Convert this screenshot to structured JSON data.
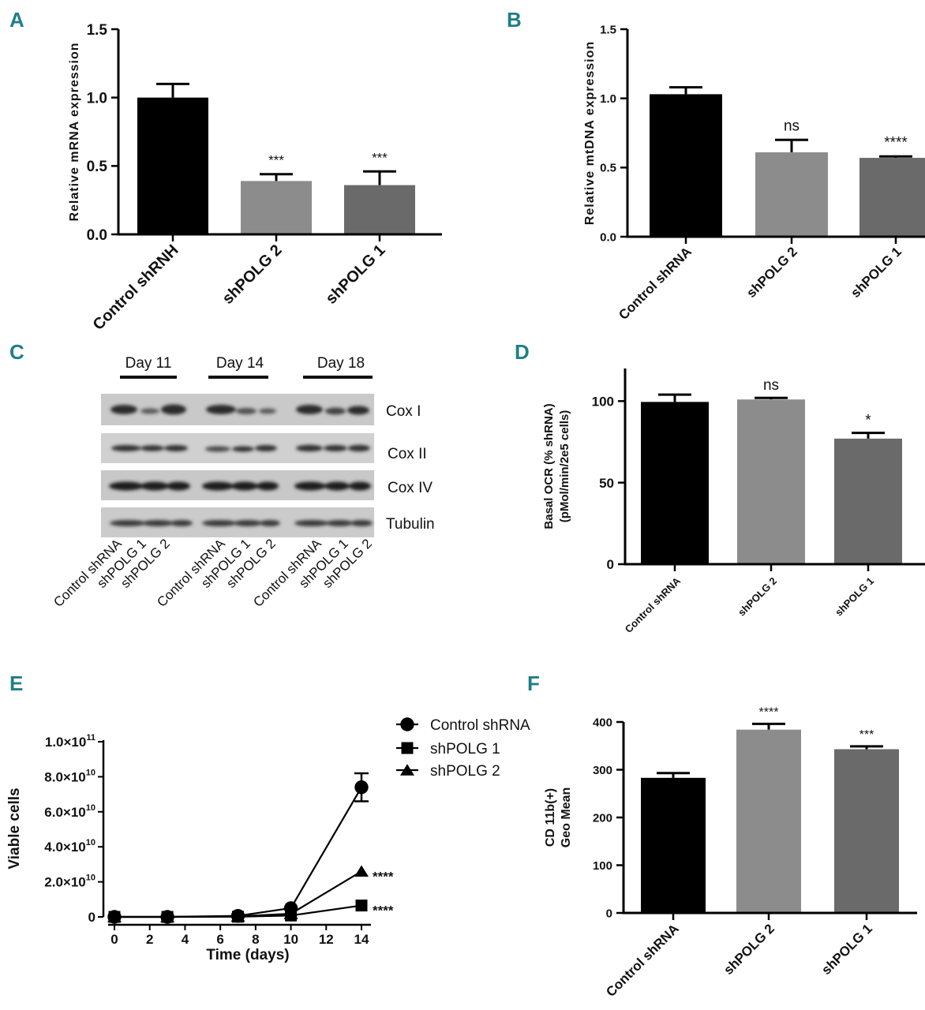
{
  "figure": {
    "panel_letter_color": "#1e7f86",
    "bar_colors": [
      "#000000",
      "#8c8c8c",
      "#6a6a6a"
    ]
  },
  "chart_data": [
    {
      "panel": "A",
      "type": "bar",
      "title": "",
      "ylabel": "Relative mRNA expression",
      "xlabel": "",
      "categories": [
        "Control shRNH",
        "shPOLG 2",
        "shPOLG 1"
      ],
      "values": [
        1.0,
        0.39,
        0.36
      ],
      "errors": [
        0.1,
        0.05,
        0.1
      ],
      "significance": [
        "",
        "***",
        "***"
      ],
      "ylim": [
        0,
        1.5
      ],
      "yticks": [
        "0.0",
        "0.5",
        "1.0",
        "1.5"
      ],
      "yticks_values": [
        0,
        0.5,
        1.0,
        1.5
      ]
    },
    {
      "panel": "B",
      "type": "bar",
      "title": "",
      "ylabel": "Relative mtDNA expression",
      "xlabel": "",
      "categories": [
        "Control shRNA",
        "shPOLG 2",
        "shPOLG 1"
      ],
      "values": [
        1.03,
        0.61,
        0.57
      ],
      "errors": [
        0.05,
        0.09,
        0.01
      ],
      "significance": [
        "",
        "ns",
        "****"
      ],
      "ylim": [
        0,
        1.5
      ],
      "yticks": [
        "0.0",
        "0.5",
        "1.0",
        "1.5"
      ],
      "yticks_values": [
        0,
        0.5,
        1.0,
        1.5
      ]
    },
    {
      "panel": "D",
      "type": "bar",
      "title": "",
      "ylabel_lines": [
        "Basal OCR  (% shRNA)",
        "(pMol/min/2e5 cells)"
      ],
      "xlabel": "",
      "categories": [
        "Control shRNA",
        "shPOLG 2",
        "shPOLG 1"
      ],
      "values": [
        99.5,
        101,
        77
      ],
      "errors": [
        4.5,
        1,
        3.5
      ],
      "significance": [
        "",
        "ns",
        "*"
      ],
      "ylim": [
        0,
        120
      ],
      "yticks": [
        "0",
        "50",
        "100"
      ],
      "yticks_values": [
        0,
        50,
        100
      ]
    },
    {
      "panel": "E",
      "type": "line",
      "title": "",
      "xlabel": "Time (days)",
      "ylabel": "Viable cells",
      "x": [
        0,
        3,
        7,
        10,
        14
      ],
      "xlim": [
        0,
        15
      ],
      "xticks": [
        "0",
        "2",
        "4",
        "6",
        "8",
        "10",
        "12",
        "14"
      ],
      "xticks_values": [
        0,
        2,
        4,
        6,
        8,
        10,
        12,
        14
      ],
      "ylim": [
        0,
        100000000000.0
      ],
      "yticks": [
        {
          "value": 0,
          "mantissa": "0",
          "exp": ""
        },
        {
          "value": 20000000000.0,
          "mantissa": "2.0×10",
          "exp": "10"
        },
        {
          "value": 40000000000.0,
          "mantissa": "4.0×10",
          "exp": "10"
        },
        {
          "value": 60000000000.0,
          "mantissa": "6.0×10",
          "exp": "10"
        },
        {
          "value": 80000000000.0,
          "mantissa": "8.0×10",
          "exp": "10"
        },
        {
          "value": 100000000000.0,
          "mantissa": "1.0×10",
          "exp": "11"
        }
      ],
      "series": [
        {
          "name": "Control shRNA",
          "marker": "circle",
          "values": [
            0,
            0,
            600000000.0,
            5000000000.0,
            74000000000.0
          ],
          "error_last": 8000000000.0,
          "significance": ""
        },
        {
          "name": "shPOLG 1",
          "marker": "square",
          "values": [
            0,
            0,
            100000000.0,
            800000000.0,
            6500000000.0
          ],
          "error_last": 0,
          "significance": "****"
        },
        {
          "name": "shPOLG 2",
          "marker": "triangle",
          "values": [
            0,
            0,
            300000000.0,
            1800000000.0,
            26000000000.0
          ],
          "error_last": 0,
          "significance": "****"
        }
      ]
    },
    {
      "panel": "F",
      "type": "bar",
      "title": "",
      "ylabel_lines": [
        "CD 11b(+)",
        "Geo Mean"
      ],
      "xlabel": "",
      "categories": [
        "Control shRNA",
        "shPOLG 2",
        "shPOLG 1"
      ],
      "values": [
        283,
        384,
        343
      ],
      "errors": [
        10,
        12,
        6
      ],
      "significance": [
        "",
        "****",
        "***"
      ],
      "ylim": [
        0,
        400
      ],
      "yticks": [
        "0",
        "100",
        "200",
        "300",
        "400"
      ],
      "yticks_values": [
        0,
        100,
        200,
        300,
        400
      ]
    }
  ],
  "western_blot": {
    "panel": "C",
    "days": [
      "Day 11",
      "Day 14",
      "Day 18"
    ],
    "proteins": [
      "Cox I",
      "Cox II",
      "Cox IV",
      "Tubulin"
    ],
    "lane_labels": [
      "Control shRNA",
      "shPOLG 1",
      "shPOLG 2"
    ]
  }
}
